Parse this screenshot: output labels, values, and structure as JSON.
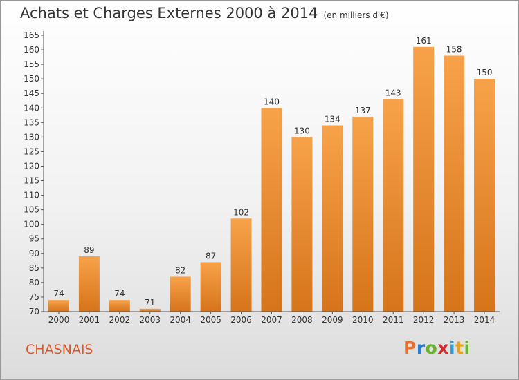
{
  "header": {
    "title": "Achats et Charges Externes 2000 à 2014",
    "subtitle": "(en milliers d'€)"
  },
  "footer": {
    "commune": "CHASNAIS",
    "logo_text": "Proxiti"
  },
  "colors": {
    "bar_light": "#f7a24a",
    "bar_dark": "#d6741a",
    "commune_text": "#e0562b",
    "logo_letters": [
      "#e8702a",
      "#2a7fd4",
      "#6ab32e",
      "#d42a2a",
      "#2a9fd4",
      "#e8a020",
      "#6ab32e"
    ]
  },
  "chart_data": {
    "type": "bar",
    "categories": [
      "2000",
      "2001",
      "2002",
      "2003",
      "2004",
      "2005",
      "2006",
      "2007",
      "2008",
      "2009",
      "2010",
      "2011",
      "2012",
      "2013",
      "2014"
    ],
    "values": [
      74,
      89,
      74,
      71,
      82,
      87,
      102,
      140,
      130,
      134,
      137,
      143,
      161,
      158,
      150
    ],
    "title": "Achats et Charges Externes 2000 à 2014",
    "subtitle": "(en milliers d'€)",
    "xlabel": "",
    "ylabel": "",
    "ylim": [
      70,
      165
    ],
    "yticks": [
      70,
      75,
      80,
      85,
      90,
      95,
      100,
      105,
      110,
      115,
      120,
      125,
      130,
      135,
      140,
      145,
      150,
      155,
      160,
      165
    ],
    "grid": false,
    "legend": "none"
  }
}
